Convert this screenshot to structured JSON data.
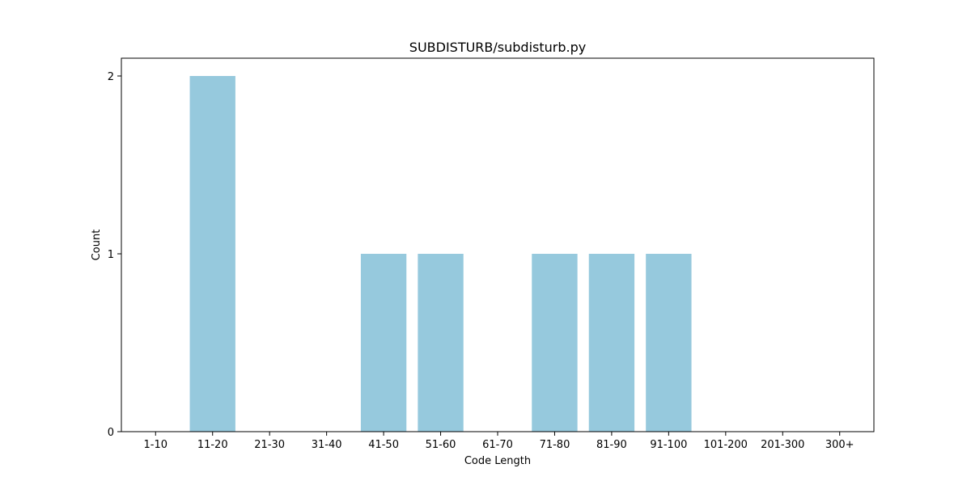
{
  "chart_data": {
    "type": "bar",
    "title": "SUBDISTURB/subdisturb.py",
    "xlabel": "Code Length",
    "ylabel": "Count",
    "categories": [
      "1-10",
      "11-20",
      "21-30",
      "31-40",
      "41-50",
      "51-60",
      "61-70",
      "71-80",
      "81-90",
      "91-100",
      "101-200",
      "201-300",
      "300+"
    ],
    "values": [
      0,
      2,
      0,
      0,
      1,
      1,
      0,
      1,
      1,
      1,
      0,
      0,
      0
    ],
    "ylim": [
      0,
      2.1
    ],
    "yticks": [
      0,
      1,
      2
    ],
    "grid": false,
    "bar_color": "#96c9dd"
  }
}
